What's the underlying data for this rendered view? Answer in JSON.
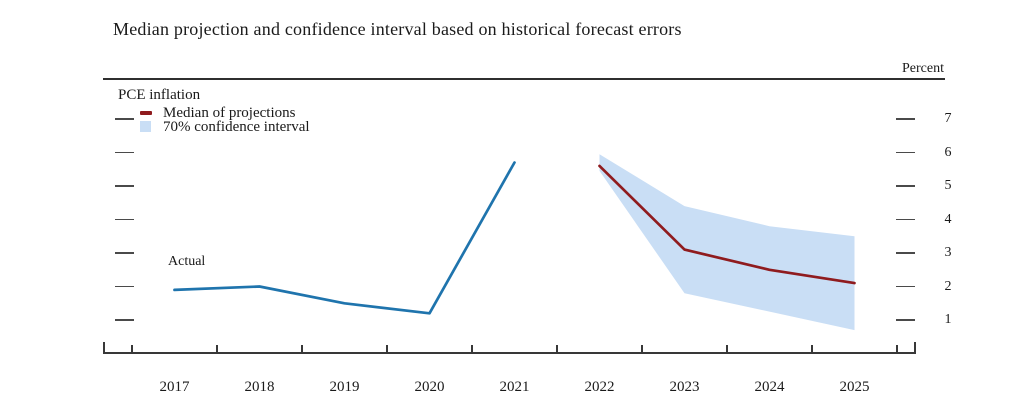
{
  "title": "Median projection and confidence interval based on historical forecast errors",
  "axis": {
    "unit_label": "Percent",
    "y_tick_values": [
      1,
      2,
      3,
      4,
      5,
      6,
      7
    ],
    "x_tick_years": [
      "2017",
      "2018",
      "2019",
      "2020",
      "2021",
      "2022",
      "2023",
      "2024",
      "2025"
    ]
  },
  "legend": {
    "heading": "PCE inflation",
    "items": [
      {
        "swatch": "median-dash",
        "label": "Median of projections"
      },
      {
        "swatch": "band-square",
        "label": "70% confidence interval"
      }
    ]
  },
  "annotations": {
    "actual_label": "Actual"
  },
  "colors": {
    "actual_line": "#1f74ad",
    "median_line": "#8f1b1e",
    "band": "#c9def5",
    "axis": "#383838",
    "tick": "#4a4a4a"
  },
  "chart_data": {
    "type": "line",
    "title": "Median projection and confidence interval based on historical forecast errors",
    "subtitle": "PCE inflation",
    "ylabel": "Percent",
    "ylim": [
      0,
      8
    ],
    "grid": false,
    "legend_position": "top-left",
    "x_label_years": [
      2017,
      2018,
      2019,
      2020,
      2021,
      2022,
      2023,
      2024,
      2025
    ],
    "series": [
      {
        "name": "Actual",
        "x": [
          2017,
          2018,
          2019,
          2020,
          2021
        ],
        "values": [
          1.9,
          2.0,
          1.5,
          1.2,
          5.7
        ]
      },
      {
        "name": "Median of projections",
        "x": [
          2022,
          2023,
          2024,
          2025
        ],
        "values": [
          5.6,
          3.1,
          2.5,
          2.1
        ]
      }
    ],
    "band": {
      "name": "70% confidence interval",
      "x": [
        2022,
        2023,
        2024,
        2025
      ],
      "upper": [
        5.95,
        4.4,
        3.8,
        3.5
      ],
      "lower": [
        5.45,
        1.8,
        1.25,
        0.7
      ]
    }
  }
}
